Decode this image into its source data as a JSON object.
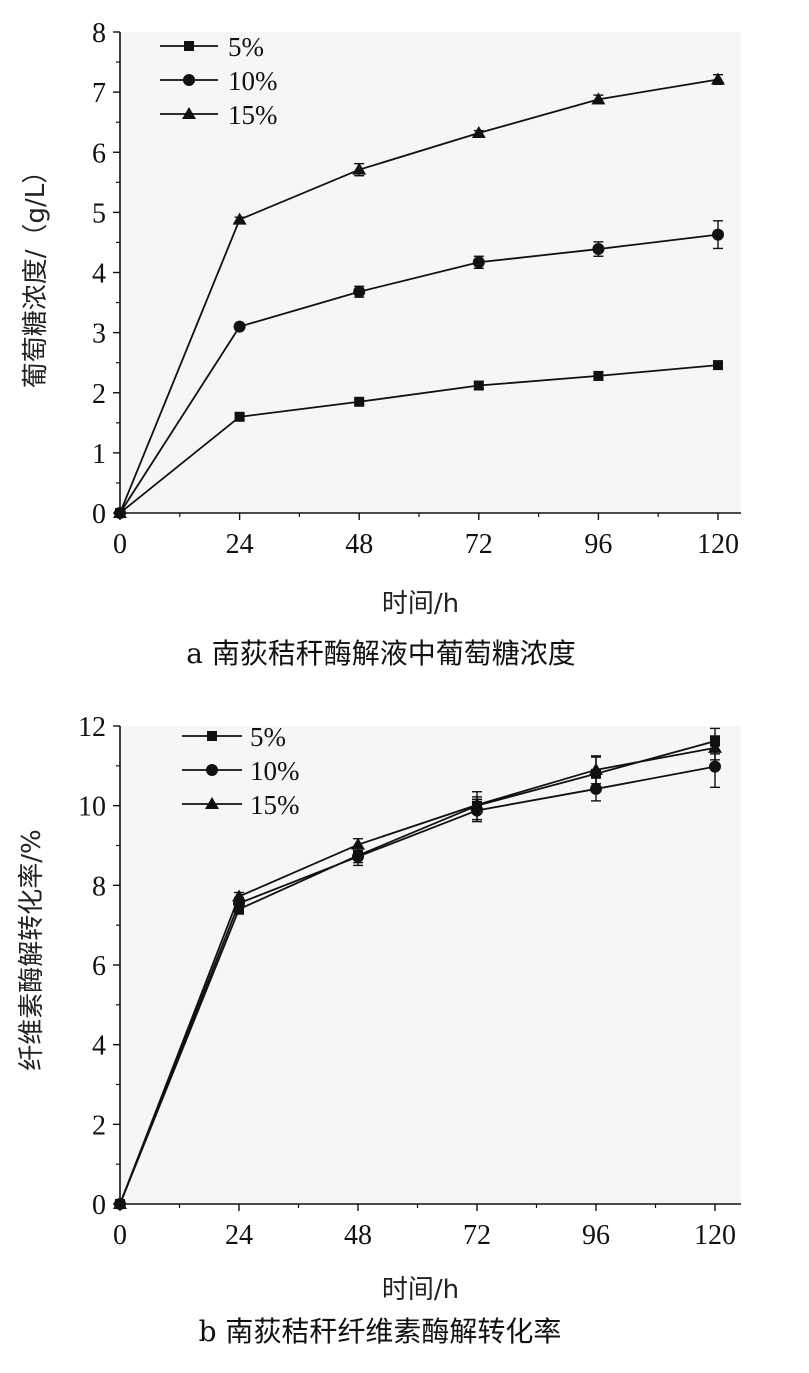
{
  "chart_data": [
    {
      "type": "line",
      "caption": "a 南荻秸秆酶解液中葡萄糖浓度",
      "xlabel": "时间/h",
      "ylabel": "葡萄糖浓度/（g/L）",
      "x": [
        0,
        24,
        48,
        72,
        96,
        120
      ],
      "xticks": [
        0,
        24,
        48,
        72,
        96,
        120
      ],
      "yticks": [
        0,
        1,
        2,
        3,
        4,
        5,
        6,
        7,
        8
      ],
      "xlim": [
        0,
        120
      ],
      "ylim": [
        0,
        8
      ],
      "grid": false,
      "legend_position": "top-left",
      "series": [
        {
          "name": "5%",
          "marker": "square",
          "values": [
            0,
            1.6,
            1.85,
            2.12,
            2.28,
            2.46
          ],
          "errors": [
            0,
            0.03,
            0.04,
            0.06,
            0.07,
            0.05
          ]
        },
        {
          "name": "10%",
          "marker": "circle",
          "values": [
            0,
            3.1,
            3.68,
            4.17,
            4.39,
            4.63
          ],
          "errors": [
            0,
            0.05,
            0.09,
            0.1,
            0.12,
            0.23
          ]
        },
        {
          "name": "15%",
          "marker": "triangle",
          "values": [
            0,
            4.88,
            5.71,
            6.32,
            6.88,
            7.21
          ],
          "errors": [
            0,
            0.04,
            0.1,
            0.04,
            0.07,
            0.08
          ]
        }
      ]
    },
    {
      "type": "line",
      "caption": "b 南荻秸秆纤维素酶解转化率",
      "xlabel": "时间/h",
      "ylabel": "纤维素酶解转化率/%",
      "x": [
        0,
        24,
        48,
        72,
        96,
        120
      ],
      "xticks": [
        0,
        24,
        48,
        72,
        96,
        120
      ],
      "yticks": [
        0,
        2,
        4,
        6,
        8,
        10,
        12
      ],
      "xlim": [
        0,
        120
      ],
      "ylim": [
        0,
        12
      ],
      "grid": false,
      "legend_position": "top-left",
      "series": [
        {
          "name": "5%",
          "marker": "square",
          "values": [
            0,
            7.4,
            8.75,
            10.0,
            10.8,
            11.62
          ],
          "errors": [
            0,
            0.12,
            0.18,
            0.35,
            0.42,
            0.32
          ]
        },
        {
          "name": "10%",
          "marker": "circle",
          "values": [
            0,
            7.55,
            8.72,
            9.88,
            10.42,
            10.98
          ],
          "errors": [
            0,
            0.14,
            0.22,
            0.28,
            0.3,
            0.52
          ]
        },
        {
          "name": "15%",
          "marker": "triangle",
          "values": [
            0,
            7.72,
            9.02,
            10.02,
            10.9,
            11.45
          ],
          "errors": [
            0,
            0.1,
            0.15,
            0.2,
            0.35,
            0.3
          ]
        }
      ]
    }
  ]
}
